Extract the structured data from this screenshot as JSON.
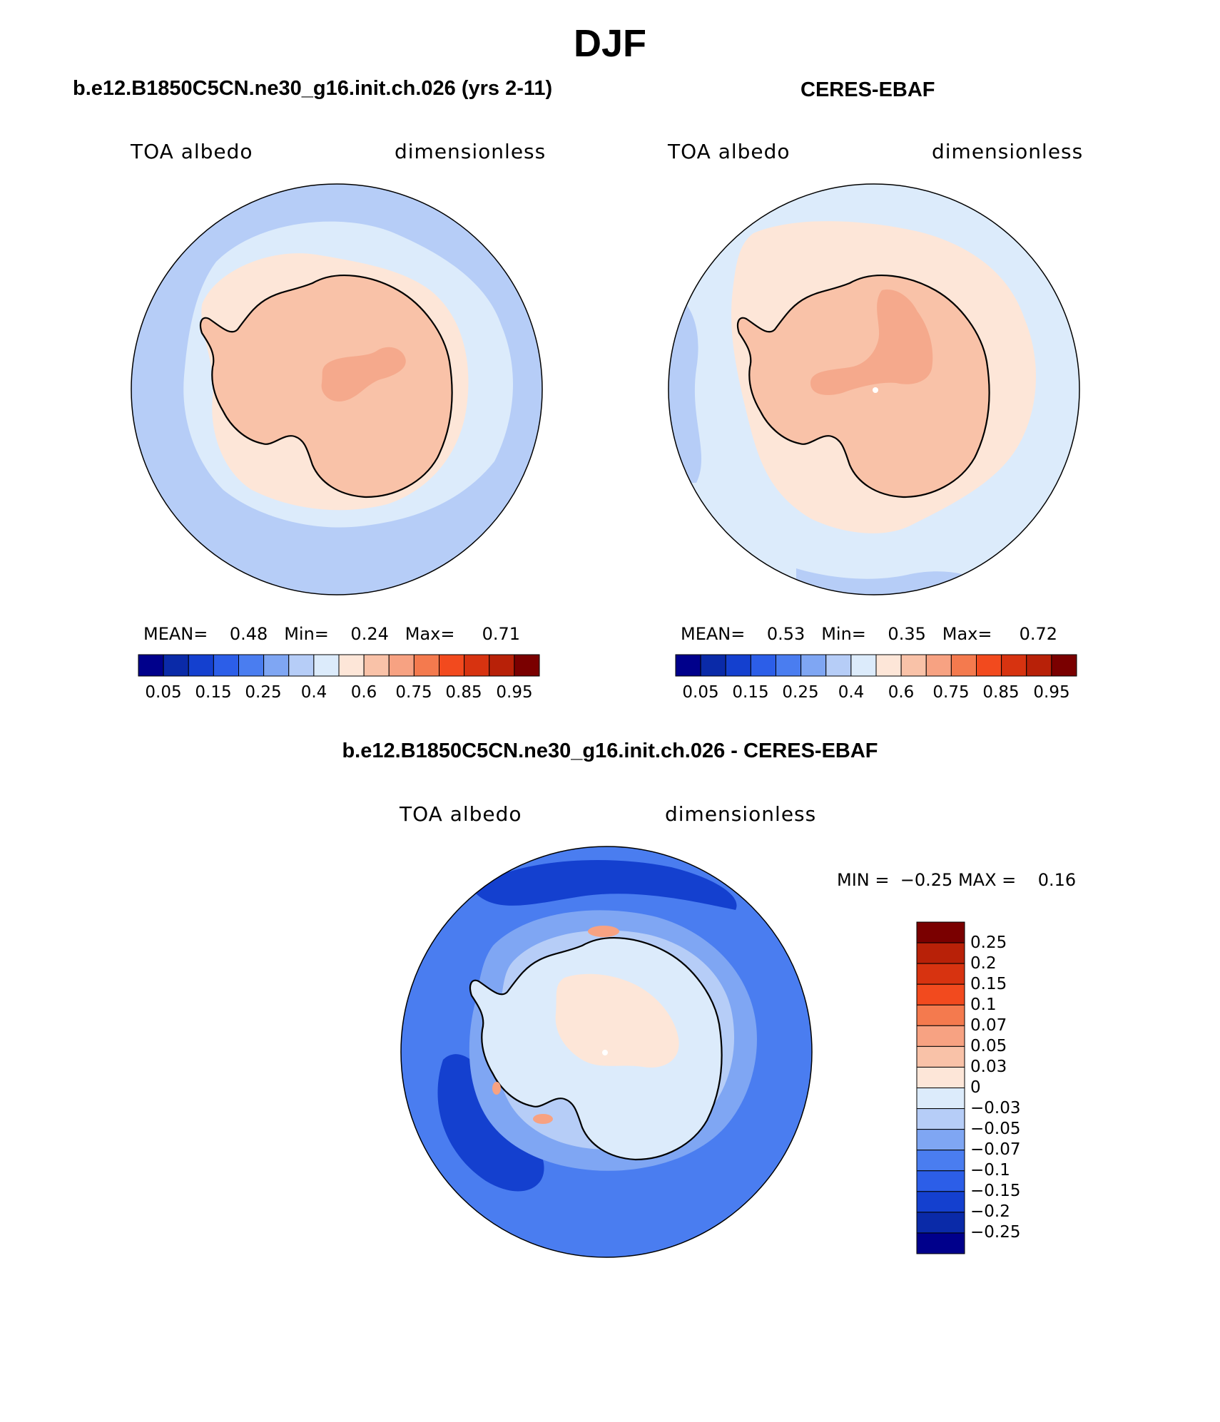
{
  "title": "DJF",
  "panels": [
    {
      "title": "b.e12.B1850C5CN.ne30_g16.init.ch.026 (yrs 2-11)",
      "var_label": "TOA albedo",
      "units_label": "dimensionless",
      "stats": {
        "mean_label": "MEAN=",
        "mean": "0.48",
        "min_label": "Min=",
        "min": "0.24",
        "max_label": "Max=",
        "max": "0.71"
      },
      "colors": {
        "ocean": "#b6cdf7",
        "ice_ring": "#dcebfb",
        "sea_ice_edge": "#fde6d8",
        "continent": "#f9c2a8",
        "interior": "#f5a98c"
      }
    },
    {
      "title": "CERES-EBAF",
      "var_label": "TOA albedo",
      "units_label": "dimensionless",
      "stats": {
        "mean_label": "MEAN=",
        "mean": "0.53",
        "min_label": "Min=",
        "min": "0.35",
        "max_label": "Max=",
        "max": "0.72"
      },
      "colors": {
        "ocean": "#dcebfb",
        "ice_ring": "#fde6d8",
        "sea_ice_edge": "#fde6d8",
        "continent": "#f9c2a8",
        "interior": "#f5a98c"
      }
    }
  ],
  "colorbar_horizontal": {
    "colors": [
      "#00008b",
      "#0a2aa8",
      "#1440cf",
      "#2c5ee8",
      "#4a7df0",
      "#7fa6f3",
      "#b6cdf7",
      "#dcebfb",
      "#fde6d8",
      "#f9c2a8",
      "#f7a282",
      "#f47a4e",
      "#f24a1e",
      "#d73310",
      "#b82108",
      "#7a0000"
    ],
    "tick_labels": [
      "0.05",
      "0.15",
      "0.25",
      "0.4",
      "0.6",
      "0.75",
      "0.85",
      "0.95"
    ]
  },
  "diff_panel": {
    "title": "b.e12.B1850C5CN.ne30_g16.init.ch.026 - CERES-EBAF",
    "var_label": "TOA albedo",
    "units_label": "dimensionless",
    "min_label": "MIN =",
    "min": "−0.25",
    "max_label": "MAX =",
    "max": "0.16",
    "colors": {
      "deep": "#1440cf",
      "ocean": "#4a7df0",
      "light": "#7fa6f3",
      "pale": "#b6cdf7",
      "continent": "#dcebfb",
      "warm": "#fde6d8",
      "hot": "#f7a282"
    }
  },
  "colorbar_vertical": {
    "colors": [
      "#7a0000",
      "#b82108",
      "#d73310",
      "#f24a1e",
      "#f47a4e",
      "#f7a282",
      "#f9c2a8",
      "#fde6d8",
      "#dcebfb",
      "#b6cdf7",
      "#7fa6f3",
      "#4a7df0",
      "#2c5ee8",
      "#1440cf",
      "#0a2aa8",
      "#00008b"
    ],
    "tick_labels": [
      "0.25",
      "0.2",
      "0.15",
      "0.1",
      "0.07",
      "0.05",
      "0.03",
      "0",
      "−0.03",
      "−0.05",
      "−0.07",
      "−0.1",
      "−0.15",
      "−0.2",
      "−0.25"
    ]
  }
}
